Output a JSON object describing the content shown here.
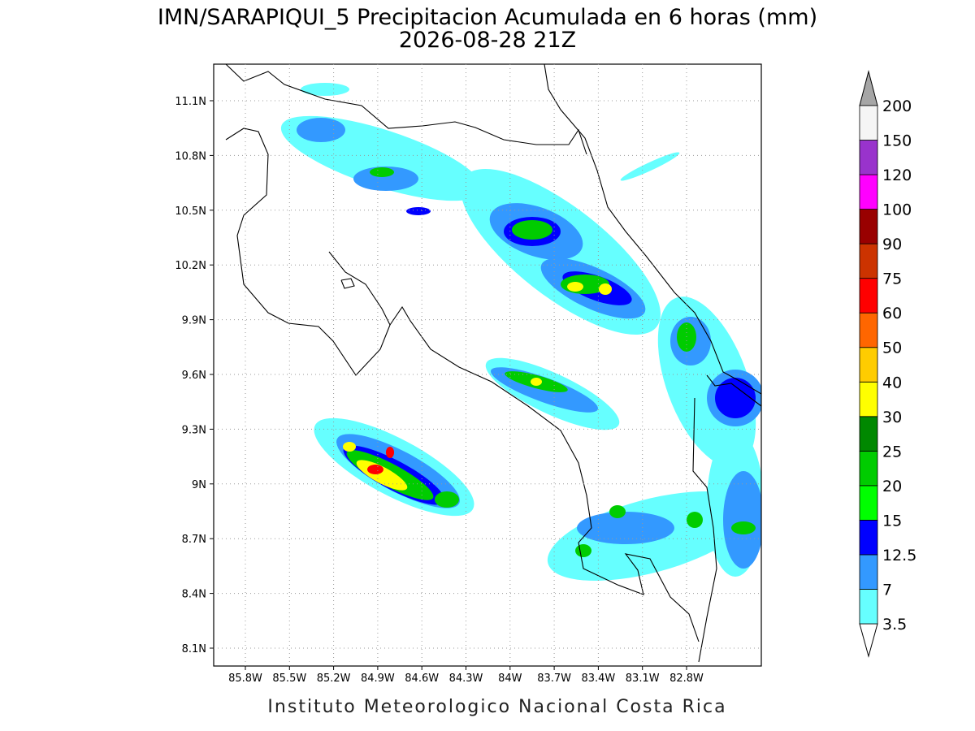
{
  "title": "IMN/SARAPIQUI_5 Precipitacion Acumulada en 6 horas (mm)",
  "subtitle": "2026-08-28 21Z",
  "map": {
    "lat_labels": [
      "11.1N",
      "10.8N",
      "10.5N",
      "10.2N",
      "9.9N",
      "9.6N",
      "9.3N",
      "9N",
      "8.7N",
      "8.4N",
      "8.1N"
    ],
    "lon_labels": [
      "85.8W",
      "85.5W",
      "85.2W",
      "84.9W",
      "84.6W",
      "84.3W",
      "84W",
      "83.7W",
      "83.4W",
      "83.1W",
      "82.8W"
    ]
  },
  "colorbar": {
    "levels": [
      3.5,
      7,
      12.5,
      15,
      20,
      25,
      30,
      40,
      50,
      60,
      75,
      90,
      100,
      120,
      150,
      200
    ],
    "colors": [
      "#66ffff",
      "#3399ff",
      "#0000ff",
      "#00ff00",
      "#00cc00",
      "#008800",
      "#ffff00",
      "#ffcc00",
      "#ff6600",
      "#ff0000",
      "#cc3300",
      "#990000",
      "#ff00ff",
      "#9933cc",
      "#f5f5f5"
    ],
    "below_color": "#ffffff",
    "above_color": "#a6a6a6"
  },
  "footer": "Instituto Meteorologico Nacional Costa Rica"
}
